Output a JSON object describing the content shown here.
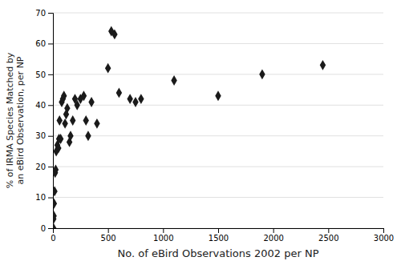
{
  "chart_data": {
    "type": "scatter",
    "x": [
      5,
      5,
      8,
      10,
      15,
      20,
      25,
      30,
      40,
      50,
      55,
      60,
      70,
      80,
      90,
      100,
      110,
      120,
      130,
      150,
      160,
      180,
      200,
      220,
      250,
      280,
      300,
      320,
      350,
      400,
      500,
      530,
      560,
      600,
      700,
      750,
      800,
      1100,
      1500,
      1900,
      2450
    ],
    "values": [
      0,
      3,
      4,
      8,
      12,
      18,
      19,
      25,
      27,
      26,
      29,
      35,
      29,
      41,
      42,
      43,
      34,
      37,
      39,
      28,
      30,
      35,
      42,
      40,
      42,
      43,
      35,
      30,
      41,
      34,
      52,
      64,
      63,
      44,
      42,
      41,
      42,
      48,
      43,
      50,
      53
    ],
    "xlabel": "No. of eBird Observations 2002 per NP",
    "ylabel": "% of IRMA Species Matched by\nan eBird Observation, per NP",
    "xlim": [
      0,
      3000
    ],
    "ylim": [
      0,
      70
    ],
    "xticks": [
      0,
      500,
      1000,
      1500,
      2000,
      2500,
      3000
    ],
    "yticks": [
      0,
      10,
      20,
      30,
      40,
      50,
      60,
      70
    ],
    "color": "#1a1a1a",
    "marker": "diamond",
    "grid": "y"
  }
}
